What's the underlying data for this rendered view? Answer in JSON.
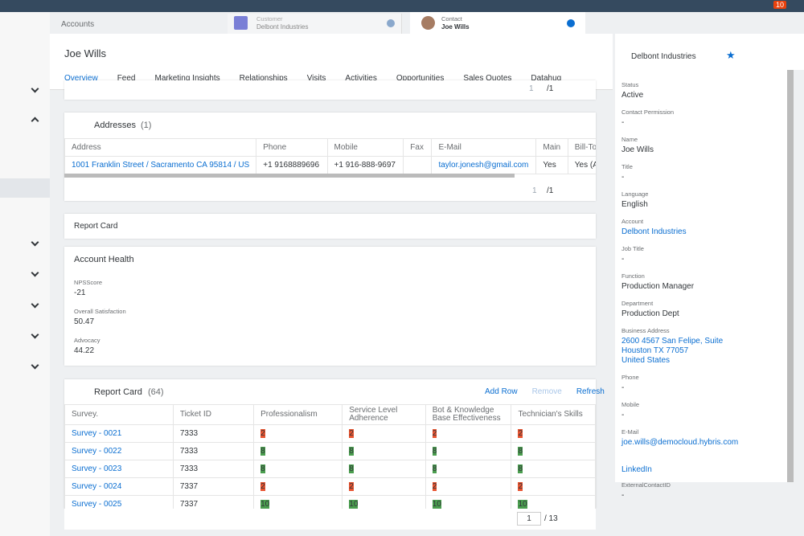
{
  "topbar": {
    "badge": "10"
  },
  "tabs": {
    "home": "Accounts",
    "customer": {
      "type": "Customer",
      "name": "Delbont Industries"
    },
    "contact": {
      "type": "Contact",
      "name": "Joe Wills"
    }
  },
  "header": {
    "title": "Joe Wills",
    "account": "Delbont Industries"
  },
  "nav": [
    "Overview",
    "Feed",
    "Marketing Insights",
    "Relationships",
    "Visits",
    "Activities",
    "Opportunities",
    "Sales Quotes",
    "Datahug"
  ],
  "top_pager": {
    "page": "1",
    "total": "/1"
  },
  "addresses": {
    "title": "Addresses",
    "count": "(1)",
    "columns": [
      "Address",
      "Phone",
      "Mobile",
      "Fax",
      "E-Mail",
      "Main",
      "Bill-To"
    ],
    "rows": [
      [
        "1001 Franklin Street / Sacramento CA 95814 / US",
        "+1 9168889696",
        "+1 916-888-9697",
        null,
        "taylor.jonesh@gmail.com",
        "Yes",
        "Yes (Autom"
      ]
    ],
    "pager": {
      "page": "1",
      "total": "/1"
    }
  },
  "report_card_label": "Report Card",
  "account_health": {
    "title": "Account Health",
    "fields": [
      {
        "label": "NPSScore",
        "value": "-21"
      },
      {
        "label": "Overall Satisfaction",
        "value": "50.47"
      },
      {
        "label": "Advocacy",
        "value": "44.22"
      }
    ]
  },
  "report_card": {
    "title": "Report Card",
    "count": "(64)",
    "actions": [
      "Add Row",
      "Remove",
      "Refresh"
    ],
    "columns": [
      "Survey.",
      "Ticket ID",
      "Professionalism",
      "Service Level Adherence",
      "Bot & Knowledge Base Effectiveness",
      "Technician's Skills"
    ],
    "rows": [
      {
        "survey": "Survey - 0021",
        "ticket": "7333",
        "scores": [
          2,
          2,
          2,
          2
        ],
        "color": "#e8532f"
      },
      {
        "survey": "Survey - 0022",
        "ticket": "7333",
        "scores": [
          8,
          8,
          8,
          8
        ],
        "color": "#4a9e4e"
      },
      {
        "survey": "Survey - 0023",
        "ticket": "7333",
        "scores": [
          8,
          8,
          8,
          8
        ],
        "color": "#4a9e4e"
      },
      {
        "survey": "Survey - 0024",
        "ticket": "7337",
        "scores": [
          2,
          2,
          2,
          2
        ],
        "color": "#e8532f"
      },
      {
        "survey": "Survey - 0025",
        "ticket": "7337",
        "scores": [
          10,
          10,
          10,
          10
        ],
        "color": "#4a9e4e"
      }
    ],
    "pager": {
      "page": "1",
      "total": "/ 13"
    }
  },
  "details": [
    {
      "label": "Status",
      "value": "Active"
    },
    {
      "label": "Contact Permission",
      "value": "-"
    },
    {
      "label": "Name",
      "value": "Joe Wills"
    },
    {
      "label": "Title",
      "value": "-"
    },
    {
      "label": "Language",
      "value": "English"
    },
    {
      "label": "Account",
      "value": "Delbont Industries",
      "link": true
    },
    {
      "label": "Job Title",
      "value": "-"
    },
    {
      "label": "Function",
      "value": "Production Manager"
    },
    {
      "label": "Department",
      "value": "Production Dept"
    },
    {
      "label": "Business Address",
      "value": [
        "2600 4567 San Felipe, Suite",
        "Houston TX 77057",
        "United States"
      ],
      "link": true
    },
    {
      "label": "Phone",
      "value": "-"
    },
    {
      "label": "Mobile",
      "value": "-"
    },
    {
      "label": "E-Mail",
      "value": "joe.wills@democloud.hybris.com",
      "link": true
    },
    {
      "label": null,
      "value": "LinkedIn",
      "link": true
    },
    {
      "label": "ExternalContactID",
      "value": "-"
    }
  ]
}
